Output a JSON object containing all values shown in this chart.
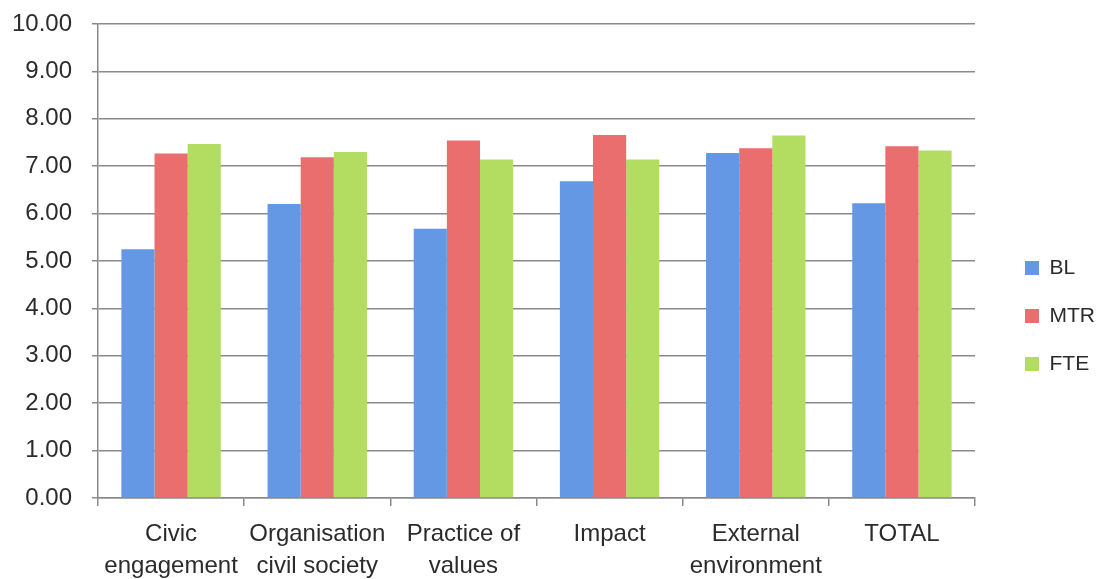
{
  "chart_data": {
    "type": "bar",
    "categories": [
      "Civic engagement",
      "Organisation civil society",
      "Practice of values",
      "Impact",
      "External environment",
      "TOTAL"
    ],
    "series": [
      {
        "name": "BL",
        "color": "#6497e4",
        "values": [
          5.25,
          6.2,
          5.68,
          6.68,
          7.28,
          6.22
        ]
      },
      {
        "name": "MTR",
        "color": "#ea6e6e",
        "values": [
          7.27,
          7.19,
          7.54,
          7.66,
          7.38,
          7.42
        ]
      },
      {
        "name": "FTE",
        "color": "#b3dd60",
        "values": [
          7.47,
          7.3,
          7.14,
          7.14,
          7.65,
          7.33
        ]
      }
    ],
    "ylim": [
      0,
      10
    ],
    "yticks": [
      {
        "value": 0,
        "label": "0.00"
      },
      {
        "value": 1,
        "label": "1.00"
      },
      {
        "value": 2,
        "label": "2.00"
      },
      {
        "value": 3,
        "label": "3.00"
      },
      {
        "value": 4,
        "label": "4.00"
      },
      {
        "value": 5,
        "label": "5.00"
      },
      {
        "value": 6,
        "label": "6.00"
      },
      {
        "value": 7,
        "label": "7.00"
      },
      {
        "value": 8,
        "label": "8.00"
      },
      {
        "value": 9,
        "label": "9.00"
      },
      {
        "value": 10,
        "label": "10.00"
      }
    ],
    "grid": "y",
    "legend": "right"
  }
}
